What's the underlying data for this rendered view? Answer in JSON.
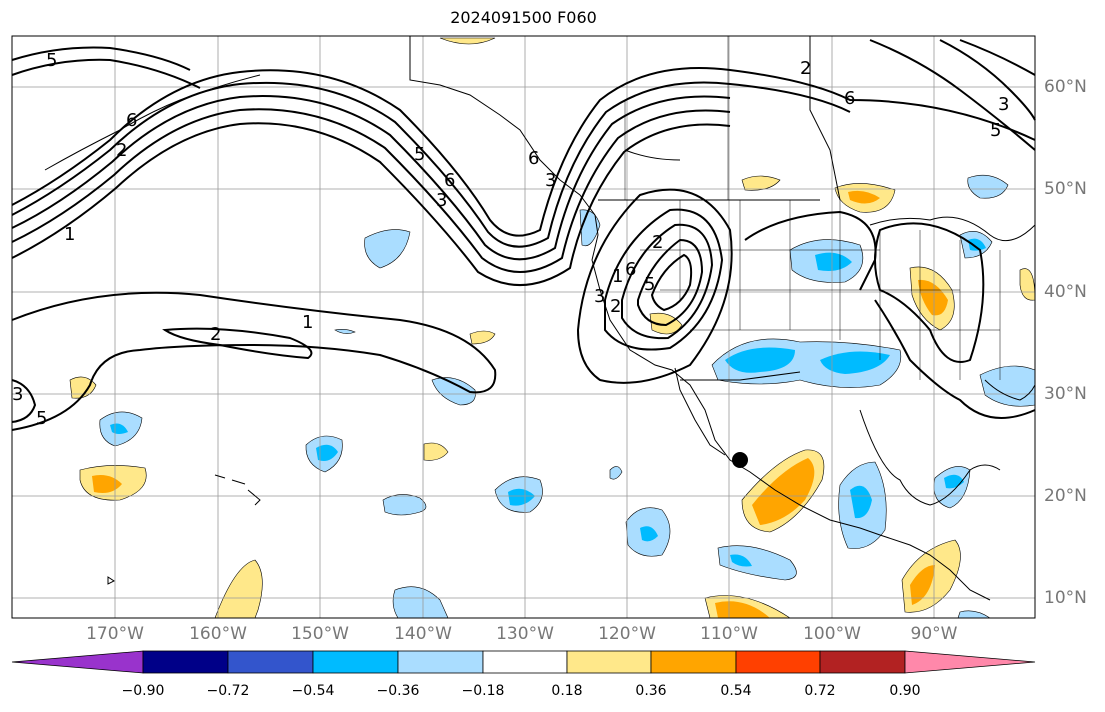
{
  "title": "2024091500 F060",
  "map": {
    "lon_labels": [
      "170°W",
      "160°W",
      "150°W",
      "140°W",
      "130°W",
      "120°W",
      "110°W",
      "100°W",
      "90°W"
    ],
    "lat_labels": [
      "60°N",
      "50°N",
      "40°N",
      "30°N",
      "20°N",
      "10°N"
    ],
    "contour_labels": [
      "5",
      "6",
      "2",
      "1",
      "5",
      "6",
      "3",
      "1",
      "2",
      "3",
      "5",
      "6",
      "3",
      "2",
      "1",
      "3",
      "2",
      "6",
      "5",
      "2",
      "6",
      "3",
      "5"
    ]
  },
  "colorbar": {
    "levels": [
      "−0.90",
      "−0.72",
      "−0.54",
      "−0.36",
      "−0.18",
      "0.18",
      "0.36",
      "0.54",
      "0.72",
      "0.90"
    ],
    "colors": [
      "#9933cc",
      "#000088",
      "#3355cc",
      "#00bbff",
      "#aaddff",
      "#ffffff",
      "#ffe88a",
      "#ffa500",
      "#ff4000",
      "#b22222",
      "#ff88aa"
    ]
  },
  "fills": {
    "light_blue": "#aaddff",
    "blue": "#00bbff",
    "yellow": "#ffe88a",
    "orange": "#ffa500"
  },
  "marker": "station-dot"
}
